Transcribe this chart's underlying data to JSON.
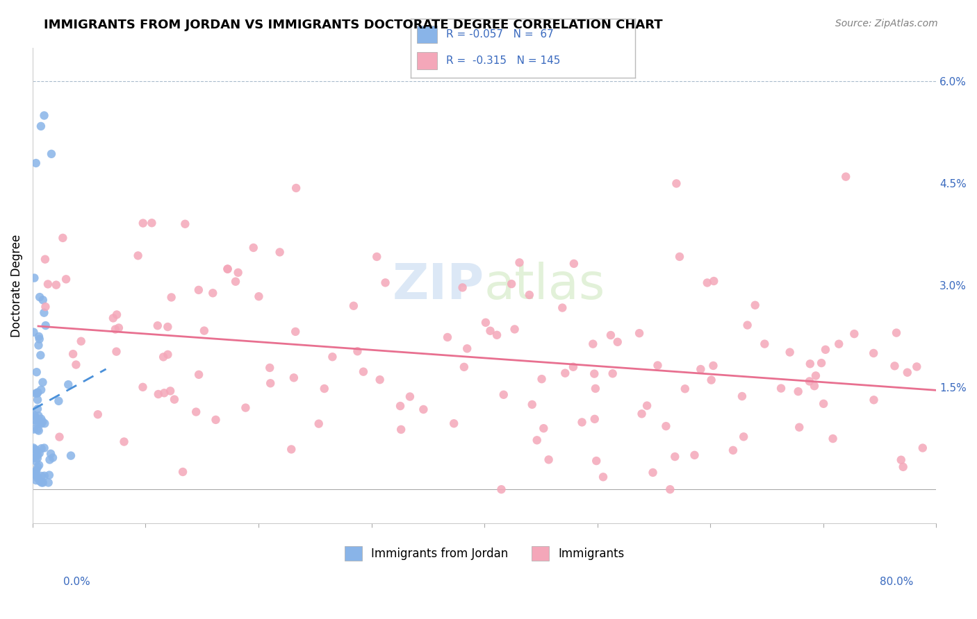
{
  "title": "IMMIGRANTS FROM JORDAN VS IMMIGRANTS DOCTORATE DEGREE CORRELATION CHART",
  "source": "Source: ZipAtlas.com",
  "ylabel": "Doctorate Degree",
  "right_yticks": [
    "6.0%",
    "4.5%",
    "3.0%",
    "1.5%"
  ],
  "right_ytick_vals": [
    0.06,
    0.045,
    0.03,
    0.015
  ],
  "blue_color": "#89b4e8",
  "pink_color": "#f4a7b9",
  "trend_blue": "#4a90d9",
  "trend_pink": "#e87090",
  "legend_text_color": "#3a6abf",
  "watermark_zip": "ZIP",
  "watermark_atlas": "atlas",
  "background_color": "#ffffff",
  "xlim": [
    0.0,
    0.8
  ],
  "ylim": [
    -0.005,
    0.065
  ]
}
